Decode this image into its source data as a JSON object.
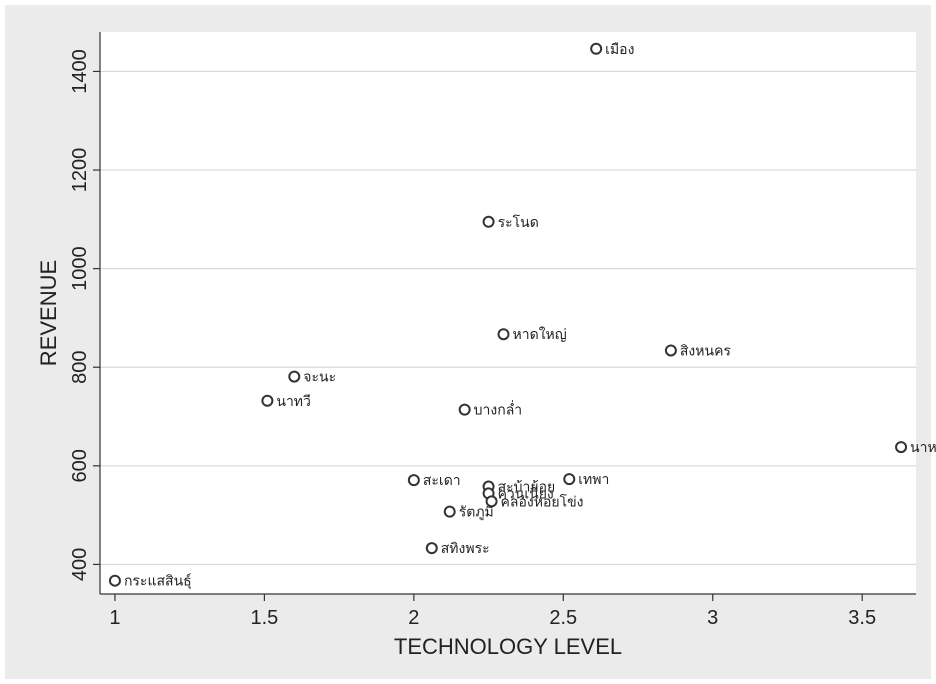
{
  "chart_data": {
    "type": "scatter",
    "xlabel": "TECHNOLOGY LEVEL",
    "ylabel": "REVENUE",
    "xlim": [
      0.95,
      3.68
    ],
    "ylim": [
      340,
      1480
    ],
    "xticks": [
      1,
      1.5,
      2,
      2.5,
      3,
      3.5
    ],
    "yticks": [
      400,
      600,
      800,
      1000,
      1200,
      1400
    ],
    "grid": "horizontal",
    "colors": {
      "outer_bg": "#ebebeb",
      "plot_bg": "#ffffff",
      "grid": "#d9d9d9",
      "marker": "#333333"
    },
    "points": [
      {
        "label": "เมือง",
        "x": 2.61,
        "y": 1446
      },
      {
        "label": "ระโนด",
        "x": 2.25,
        "y": 1095
      },
      {
        "label": "หาดใหญ่",
        "x": 2.3,
        "y": 867
      },
      {
        "label": "สิงหนคร",
        "x": 2.86,
        "y": 834
      },
      {
        "label": "จะนะ",
        "x": 1.6,
        "y": 781
      },
      {
        "label": "นาทวี",
        "x": 1.51,
        "y": 732
      },
      {
        "label": "บางกล่ำ",
        "x": 2.17,
        "y": 714
      },
      {
        "label": "นาห",
        "x": 3.63,
        "y": 638
      },
      {
        "label": "สะเดา",
        "x": 2.0,
        "y": 571
      },
      {
        "label": "เทพา",
        "x": 2.52,
        "y": 573
      },
      {
        "label": "สะบ้าย้อย",
        "x": 2.25,
        "y": 558
      },
      {
        "label": "ควนเนียง",
        "x": 2.25,
        "y": 544
      },
      {
        "label": "คลองหอยโข่ง",
        "x": 2.26,
        "y": 528
      },
      {
        "label": "รัตภูมิ",
        "x": 2.12,
        "y": 507
      },
      {
        "label": "สทิงพระ",
        "x": 2.06,
        "y": 433
      },
      {
        "label": "กระแสสินธุ์",
        "x": 1.0,
        "y": 367
      }
    ]
  }
}
